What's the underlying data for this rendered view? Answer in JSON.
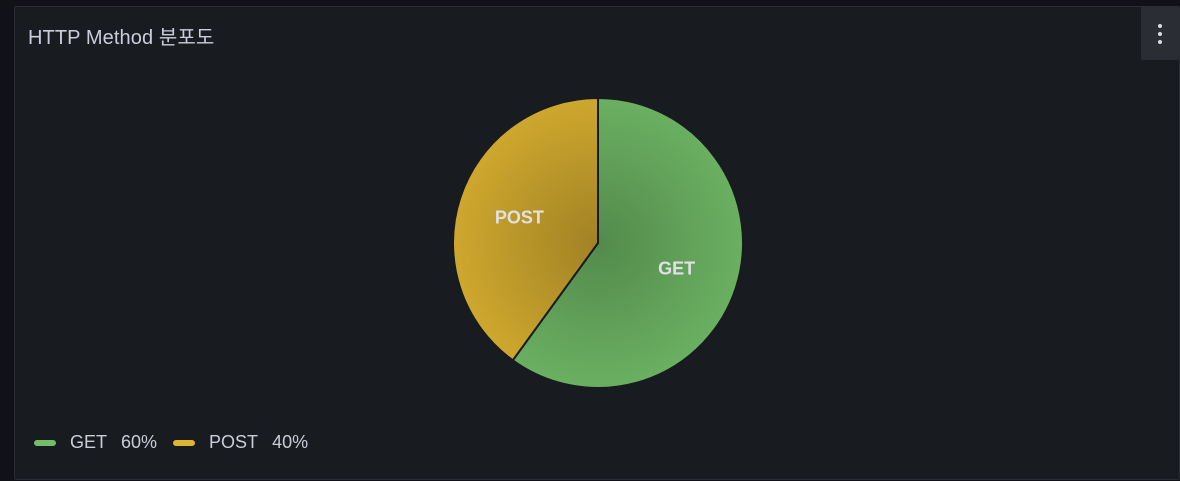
{
  "panel": {
    "title": "HTTP Method 분포도"
  },
  "colors": {
    "GET": "#73bf69",
    "POST": "#e0b532",
    "panel_bg": "#181b1f"
  },
  "chart_data": {
    "type": "pie",
    "title": "HTTP Method 분포도",
    "series": [
      {
        "name": "GET",
        "value": 60,
        "percent_label": "60%",
        "color": "#73bf69"
      },
      {
        "name": "POST",
        "value": 40,
        "percent_label": "40%",
        "color": "#e0b532"
      }
    ],
    "legend": {
      "placement": "bottom-left",
      "items": [
        {
          "name": "GET",
          "percent": "60%"
        },
        {
          "name": "POST",
          "percent": "40%"
        }
      ]
    }
  },
  "icons": {
    "menu": "kebab-menu-icon"
  }
}
